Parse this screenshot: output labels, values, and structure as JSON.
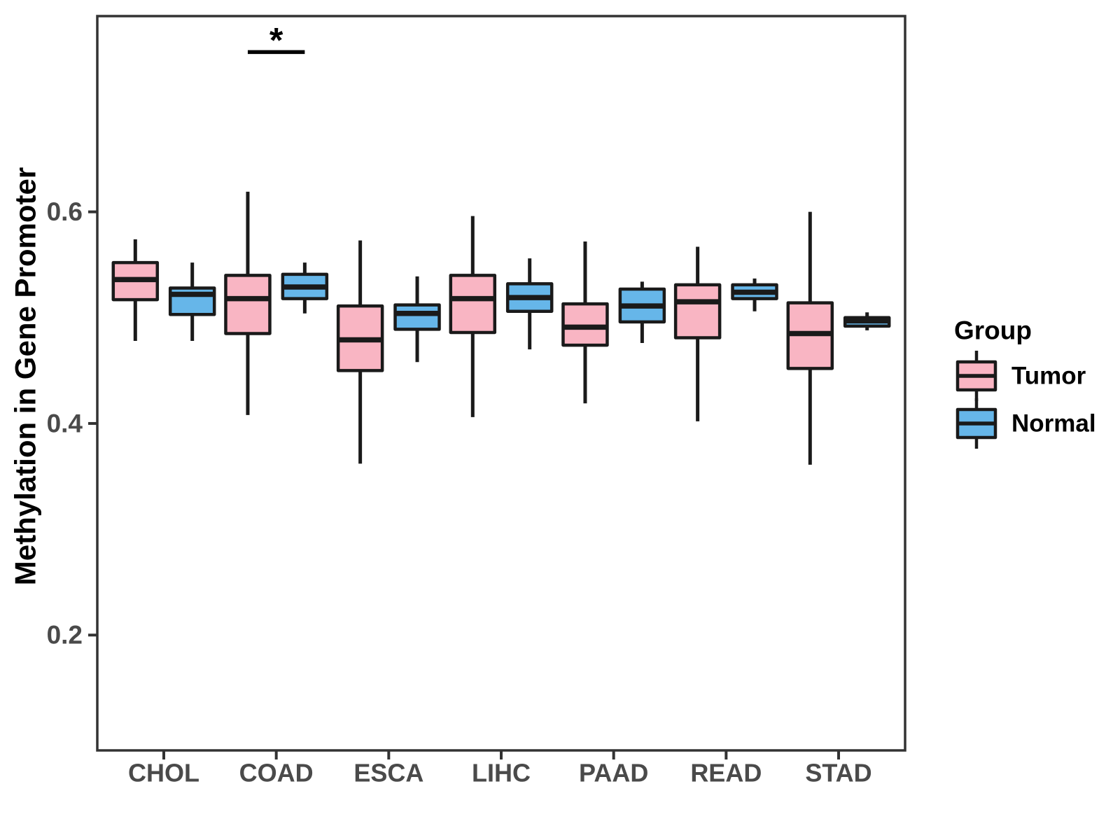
{
  "chart_data": {
    "type": "boxplot",
    "title": "",
    "xlabel": "",
    "ylabel": "Methylation in Gene Promoter",
    "categories": [
      "CHOL",
      "COAD",
      "ESCA",
      "LIHC",
      "PAAD",
      "READ",
      "STAD"
    ],
    "y_ticks": [
      "0.2",
      "0.4",
      "0.6"
    ],
    "y_tick_values": [
      0.2,
      0.4,
      0.6
    ],
    "ylim": [
      0.091,
      0.785
    ],
    "grid": false,
    "legend": {
      "title": "Group",
      "position": "right",
      "entries": [
        {
          "label": "Tumor",
          "color": "#F9B5C3"
        },
        {
          "label": "Normal",
          "color": "#66B6E9"
        }
      ]
    },
    "series": [
      {
        "name": "Tumor",
        "color": "#F9B5C3",
        "boxes": [
          {
            "category": "CHOL",
            "whisker_low": 0.478,
            "q1": 0.517,
            "median": 0.536,
            "q3": 0.552,
            "whisker_high": 0.574
          },
          {
            "category": "COAD",
            "whisker_low": 0.408,
            "q1": 0.485,
            "median": 0.518,
            "q3": 0.54,
            "whisker_high": 0.619
          },
          {
            "category": "ESCA",
            "whisker_low": 0.362,
            "q1": 0.45,
            "median": 0.479,
            "q3": 0.511,
            "whisker_high": 0.573
          },
          {
            "category": "LIHC",
            "whisker_low": 0.406,
            "q1": 0.486,
            "median": 0.518,
            "q3": 0.54,
            "whisker_high": 0.596
          },
          {
            "category": "PAAD",
            "whisker_low": 0.419,
            "q1": 0.474,
            "median": 0.491,
            "q3": 0.513,
            "whisker_high": 0.572
          },
          {
            "category": "READ",
            "whisker_low": 0.402,
            "q1": 0.481,
            "median": 0.515,
            "q3": 0.531,
            "whisker_high": 0.567
          },
          {
            "category": "STAD",
            "whisker_low": 0.361,
            "q1": 0.452,
            "median": 0.485,
            "q3": 0.514,
            "whisker_high": 0.6
          }
        ]
      },
      {
        "name": "Normal",
        "color": "#66B6E9",
        "boxes": [
          {
            "category": "CHOL",
            "whisker_low": 0.478,
            "q1": 0.503,
            "median": 0.522,
            "q3": 0.528,
            "whisker_high": 0.552
          },
          {
            "category": "COAD",
            "whisker_low": 0.504,
            "q1": 0.518,
            "median": 0.529,
            "q3": 0.541,
            "whisker_high": 0.552
          },
          {
            "category": "ESCA",
            "whisker_low": 0.458,
            "q1": 0.489,
            "median": 0.504,
            "q3": 0.512,
            "whisker_high": 0.539
          },
          {
            "category": "LIHC",
            "whisker_low": 0.47,
            "q1": 0.506,
            "median": 0.519,
            "q3": 0.532,
            "whisker_high": 0.556
          },
          {
            "category": "PAAD",
            "whisker_low": 0.476,
            "q1": 0.496,
            "median": 0.511,
            "q3": 0.527,
            "whisker_high": 0.534
          },
          {
            "category": "READ",
            "whisker_low": 0.506,
            "q1": 0.518,
            "median": 0.524,
            "q3": 0.531,
            "whisker_high": 0.537
          },
          {
            "category": "STAD",
            "whisker_low": 0.488,
            "q1": 0.492,
            "median": 0.497,
            "q3": 0.5,
            "whisker_high": 0.505
          }
        ]
      }
    ],
    "annotations": [
      {
        "type": "significance",
        "label": "*",
        "category": "COAD",
        "between": [
          "Tumor",
          "Normal"
        ],
        "bar_y_value": 0.751
      }
    ],
    "colors": {
      "box_stroke": "#1A1A1A",
      "axis_line": "#333333",
      "axis_text": "#4A4A4A",
      "title_text": "#000000",
      "background": "#FFFFFF"
    }
  }
}
